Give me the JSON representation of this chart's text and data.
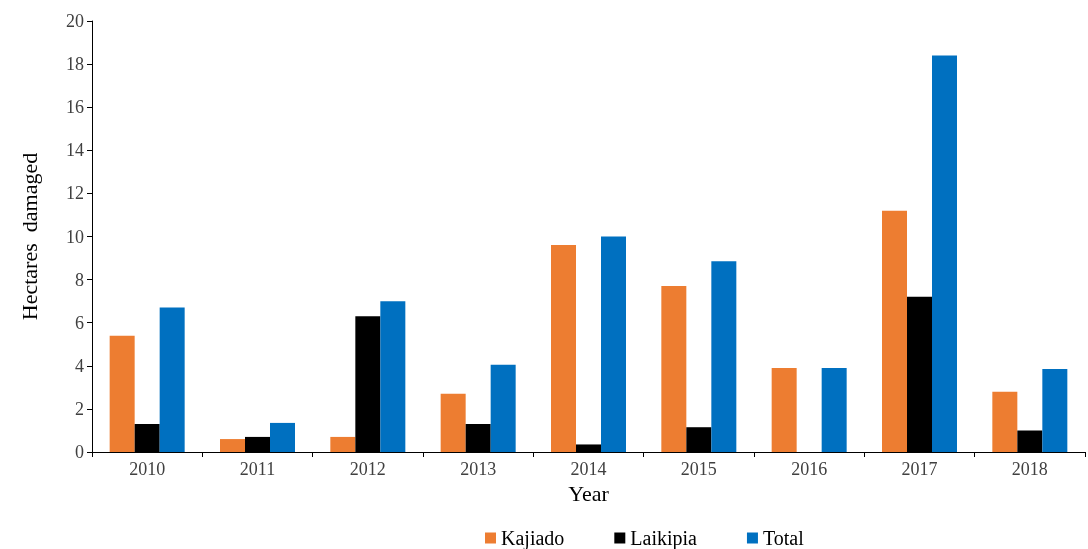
{
  "chart_data": {
    "type": "bar",
    "xlabel": "Year",
    "ylabel": "Hectares  damaged",
    "categories": [
      "2010",
      "2011",
      "2012",
      "2013",
      "2014",
      "2015",
      "2016",
      "2017",
      "2018"
    ],
    "series": [
      {
        "name": "Kajiado",
        "color": "#ed7d31",
        "values": [
          5.4,
          0.6,
          0.7,
          2.7,
          9.6,
          7.7,
          3.9,
          11.2,
          2.8
        ]
      },
      {
        "name": "Laikipia",
        "color": "#000000",
        "values": [
          1.3,
          0.7,
          6.3,
          1.3,
          0.35,
          1.15,
          0,
          7.2,
          1.0
        ]
      },
      {
        "name": "Total",
        "color": "#0070c0",
        "values": [
          6.7,
          1.35,
          7.0,
          4.05,
          10.0,
          8.85,
          3.9,
          18.4,
          3.85
        ]
      }
    ],
    "ylim": [
      0,
      20
    ],
    "yticks": [
      0,
      2,
      4,
      6,
      8,
      10,
      12,
      14,
      16,
      18,
      20
    ],
    "grid": false,
    "legend": "bottom"
  }
}
